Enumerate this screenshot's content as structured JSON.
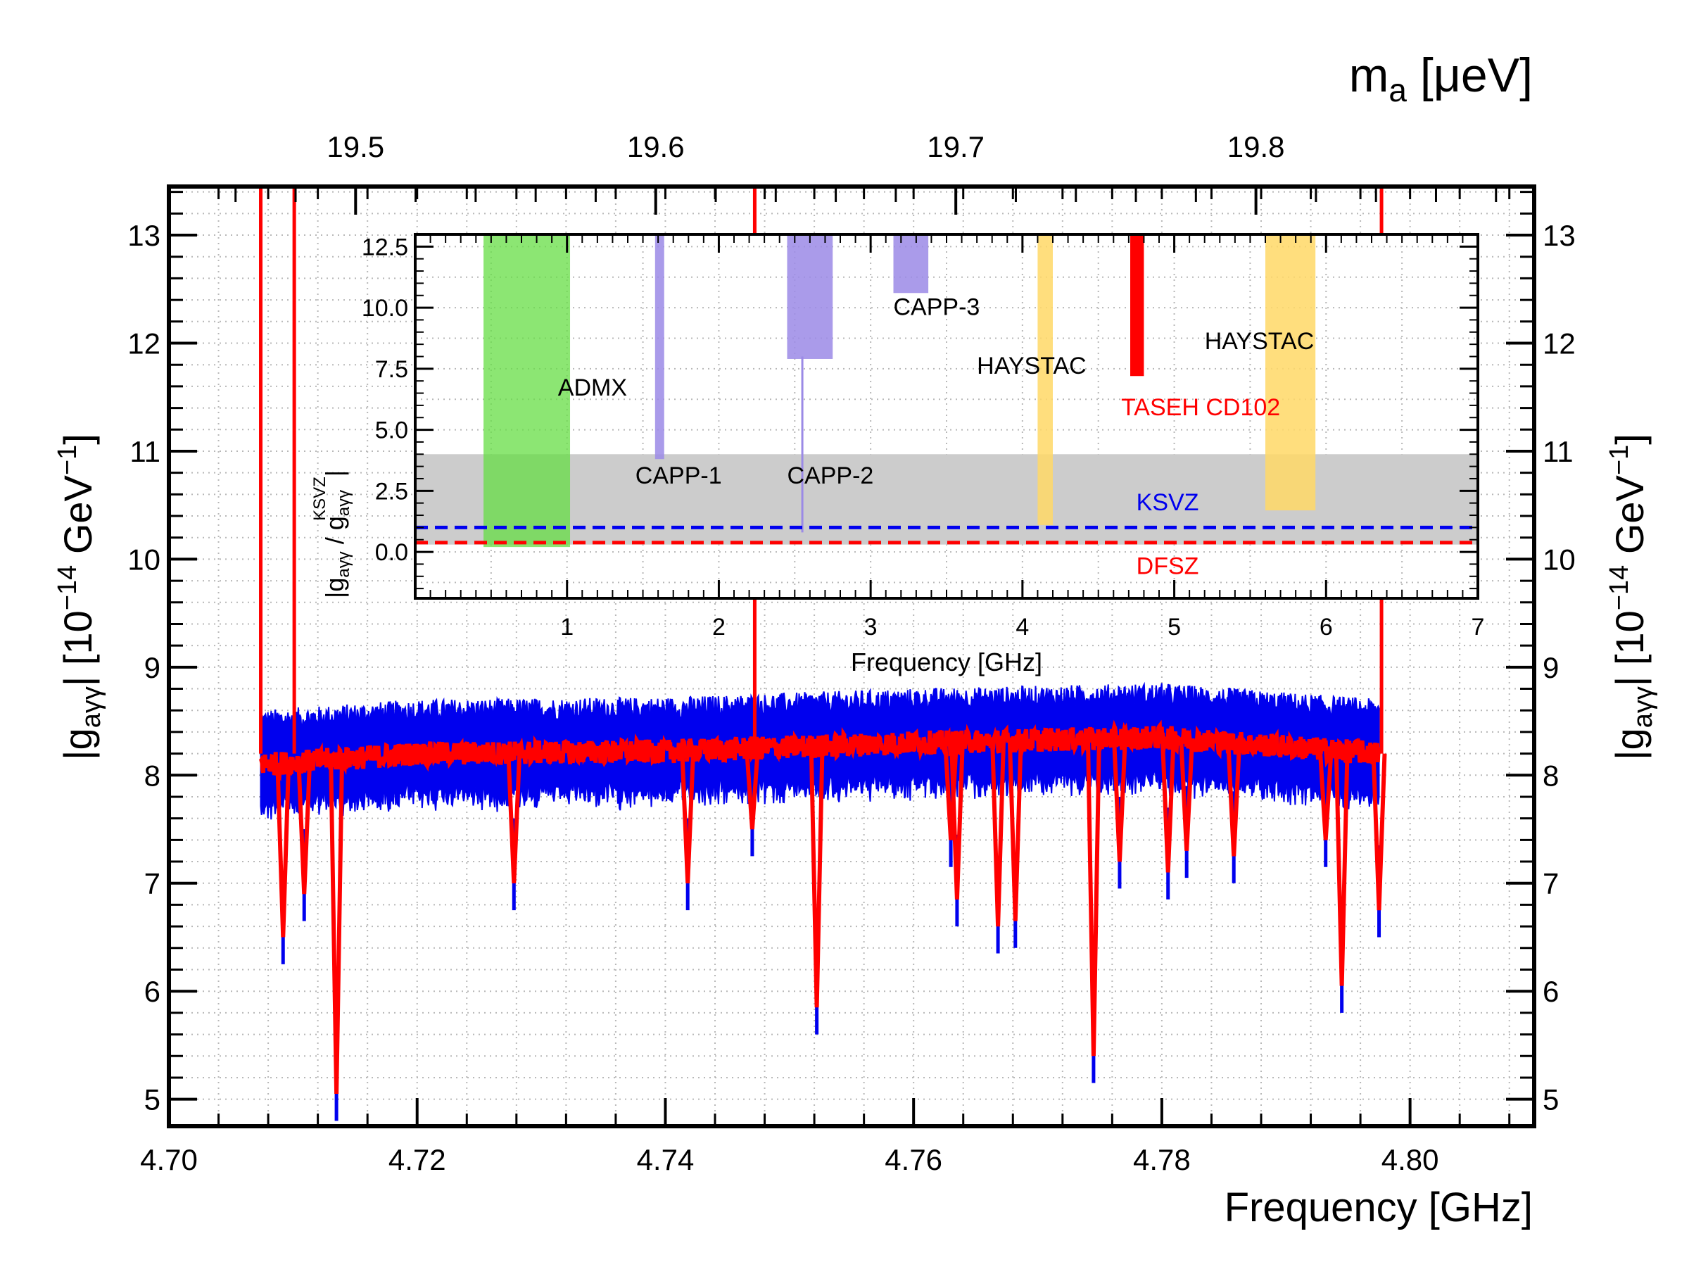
{
  "chart_data": [
    {
      "type": "line",
      "title": "",
      "xlabel": "Frequency [GHz]",
      "ylabel": "|g",
      "ylabel_sub": "aγγ",
      "ylabel_unit": "|  [10",
      "ylabel_exp": "−14",
      "ylabel_unit2": " GeV",
      "ylabel_exp2": "−1",
      "ylabel_close": "]",
      "top_xlabel": "m",
      "top_xlabel_sub": "a",
      "top_xlabel_unit": " [μeV]",
      "xlim": [
        4.7,
        4.81
      ],
      "ylim": [
        4.75,
        13.45
      ],
      "grid": true,
      "x_ticks": [
        {
          "v": 4.7,
          "label": "4.70"
        },
        {
          "v": 4.72,
          "label": "4.72"
        },
        {
          "v": 4.74,
          "label": "4.74"
        },
        {
          "v": 4.76,
          "label": "4.76"
        },
        {
          "v": 4.78,
          "label": "4.78"
        },
        {
          "v": 4.8,
          "label": "4.80"
        }
      ],
      "y_ticks": [
        {
          "v": 5,
          "label": "5"
        },
        {
          "v": 6,
          "label": "6"
        },
        {
          "v": 7,
          "label": "7"
        },
        {
          "v": 8,
          "label": "8"
        },
        {
          "v": 9,
          "label": "9"
        },
        {
          "v": 10,
          "label": "10"
        },
        {
          "v": 11,
          "label": "11"
        },
        {
          "v": 12,
          "label": "12"
        },
        {
          "v": 13,
          "label": "13"
        }
      ],
      "top_ticks": [
        {
          "v": 19.5,
          "label": "19.5"
        },
        {
          "v": 19.6,
          "label": "19.6"
        },
        {
          "v": 19.7,
          "label": "19.7"
        },
        {
          "v": 19.8,
          "label": "19.8"
        }
      ],
      "mass_per_ghz": 4.1357,
      "series": [
        {
          "color": "#0000ee",
          "band_halfwidth": 0.42,
          "center": [
            [
              4.7074,
              8.1
            ],
            [
              4.72,
              8.2
            ],
            [
              4.74,
              8.22
            ],
            [
              4.76,
              8.3
            ],
            [
              4.78,
              8.35
            ],
            [
              4.7975,
              8.2
            ]
          ]
        },
        {
          "color": "#ff0000",
          "center": [
            [
              4.7074,
              8.1
            ],
            [
              4.72,
              8.2
            ],
            [
              4.74,
              8.22
            ],
            [
              4.76,
              8.3
            ],
            [
              4.78,
              8.35
            ],
            [
              4.7975,
              8.2
            ]
          ],
          "spikes": [
            4.7074,
            4.7101,
            4.7472,
            4.7977
          ],
          "dips": [
            {
              "x": 4.7092,
              "y": 6.5
            },
            {
              "x": 4.7109,
              "y": 6.9
            },
            {
              "x": 4.7135,
              "y": 5.05
            },
            {
              "x": 4.7278,
              "y": 7.0
            },
            {
              "x": 4.7418,
              "y": 7.0
            },
            {
              "x": 4.747,
              "y": 7.5
            },
            {
              "x": 4.7522,
              "y": 5.85
            },
            {
              "x": 4.763,
              "y": 7.4
            },
            {
              "x": 4.7635,
              "y": 6.85
            },
            {
              "x": 4.7668,
              "y": 6.6
            },
            {
              "x": 4.7682,
              "y": 6.65
            },
            {
              "x": 4.7745,
              "y": 5.4
            },
            {
              "x": 4.7766,
              "y": 7.2
            },
            {
              "x": 4.7805,
              "y": 7.1
            },
            {
              "x": 4.782,
              "y": 7.3
            },
            {
              "x": 4.7858,
              "y": 7.25
            },
            {
              "x": 4.7932,
              "y": 7.4
            },
            {
              "x": 4.7945,
              "y": 6.05
            },
            {
              "x": 4.7975,
              "y": 6.75
            }
          ]
        }
      ]
    },
    {
      "type": "area",
      "title": "",
      "xlabel": "Frequency [GHz]",
      "ylabel_a": "|g",
      "ylabel_a_sub": "aγγ",
      "ylabel_b": " / g",
      "ylabel_b_sub": "aγγ",
      "ylabel_b_sup": "KSVZ",
      "ylabel_c": "|",
      "xlim": [
        0,
        7
      ],
      "ylim": [
        -1.9,
        13.0
      ],
      "grid": true,
      "x_ticks": [
        {
          "v": 1,
          "label": "1"
        },
        {
          "v": 2,
          "label": "2"
        },
        {
          "v": 3,
          "label": "3"
        },
        {
          "v": 4,
          "label": "4"
        },
        {
          "v": 5,
          "label": "5"
        },
        {
          "v": 6,
          "label": "6"
        },
        {
          "v": 7,
          "label": "7"
        }
      ],
      "y_ticks": [
        {
          "v": 0.0,
          "label": "0.0"
        },
        {
          "v": 2.5,
          "label": "2.5"
        },
        {
          "v": 5.0,
          "label": "5.0"
        },
        {
          "v": 7.5,
          "label": "7.5"
        },
        {
          "v": 10.0,
          "label": "10.0"
        },
        {
          "v": 12.5,
          "label": "12.5"
        }
      ],
      "gray_band": [
        0.3,
        4.0
      ],
      "gray_color": "#cccccc",
      "lines": [
        {
          "name": "KSVZ",
          "y": 1.0,
          "color": "#0000ee"
        },
        {
          "name": "DFSZ",
          "y": 0.38,
          "color": "#ff0000"
        }
      ],
      "regions": [
        {
          "name": "ADMX",
          "x": [
            0.45,
            1.02
          ],
          "y": [
            0.2,
            13.0
          ],
          "color": "#66dd44",
          "opacity": 0.75
        },
        {
          "name": "CAPP-1",
          "x": [
            1.58,
            1.64
          ],
          "y": [
            3.8,
            13.0
          ],
          "color": "#9b8ae6",
          "opacity": 0.85
        },
        {
          "name": "CAPP-2",
          "x": [
            2.45,
            2.75
          ],
          "y": [
            7.9,
            13.0
          ],
          "color": "#9b8ae6",
          "opacity": 0.85
        },
        {
          "name": "CAPP-3",
          "x": [
            3.15,
            3.38
          ],
          "y": [
            10.6,
            13.0
          ],
          "color": "#9b8ae6",
          "opacity": 0.85
        },
        {
          "name": "HAYSTAC",
          "x": [
            4.1,
            4.2
          ],
          "y": [
            1.1,
            13.0
          ],
          "color": "#ffd866",
          "opacity": 0.85
        },
        {
          "name": "TASEH CD102",
          "x": [
            4.71,
            4.8
          ],
          "y": [
            7.2,
            13.0
          ],
          "color": "#ff0000",
          "opacity": 1.0
        },
        {
          "name": "HAYSTAC",
          "x": [
            5.6,
            5.93
          ],
          "y": [
            1.7,
            13.0
          ],
          "color": "#ffd866",
          "opacity": 0.85
        }
      ],
      "labels": [
        {
          "key": "admx",
          "text": "ADMX",
          "x": 0.94,
          "y": 6.4,
          "color": "#000000"
        },
        {
          "key": "capp1",
          "text": "CAPP-1",
          "x": 1.45,
          "y": 2.8,
          "color": "#000000"
        },
        {
          "key": "capp2",
          "text": "CAPP-2",
          "x": 2.45,
          "y": 2.8,
          "color": "#000000"
        },
        {
          "key": "capp3",
          "text": "CAPP-3",
          "x": 3.15,
          "y": 9.7,
          "color": "#000000"
        },
        {
          "key": "haystac1",
          "text": "HAYSTAC",
          "x": 3.7,
          "y": 7.3,
          "color": "#000000"
        },
        {
          "key": "haystac2",
          "text": "HAYSTAC",
          "x": 5.2,
          "y": 8.3,
          "color": "#000000"
        },
        {
          "key": "taseh",
          "text": "TASEH CD102",
          "x": 4.65,
          "y": 5.6,
          "color": "#ff0000"
        },
        {
          "key": "ksvz",
          "text": "KSVZ",
          "x": 4.75,
          "y": 1.7,
          "color": "#0000ee"
        },
        {
          "key": "dfsz",
          "text": "DFSZ",
          "x": 4.75,
          "y": -0.9,
          "color": "#ff0000"
        }
      ]
    }
  ]
}
